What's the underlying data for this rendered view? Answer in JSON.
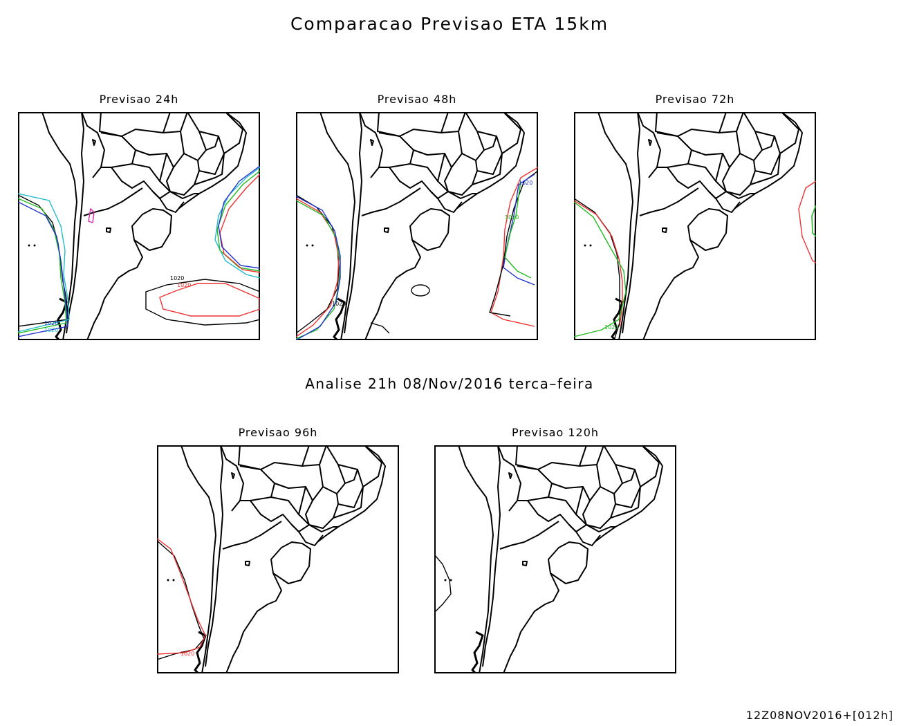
{
  "title": "Comparacao Previsao ETA 15km",
  "analysis_label": "Analise 21h 08/Nov/2016 terca–feira",
  "footer": "12Z08NOV2016+[012h]",
  "contour_label": "1020",
  "colors": {
    "frame": "#000000",
    "coast": "#000000",
    "black": "#000000",
    "red": "#ee3333",
    "green": "#22bb22",
    "blue": "#2233cc",
    "cyan": "#22bbcc",
    "magenta": "#dd22aa",
    "yellow": "#dddd00"
  },
  "panels": [
    {
      "id": "p24",
      "label": "Previsao 24h"
    },
    {
      "id": "p48",
      "label": "Previsao 48h"
    },
    {
      "id": "p72",
      "label": "Previsao 72h"
    },
    {
      "id": "p96",
      "label": "Previsao 96h"
    },
    {
      "id": "p120",
      "label": "Previsao 120h"
    }
  ]
}
